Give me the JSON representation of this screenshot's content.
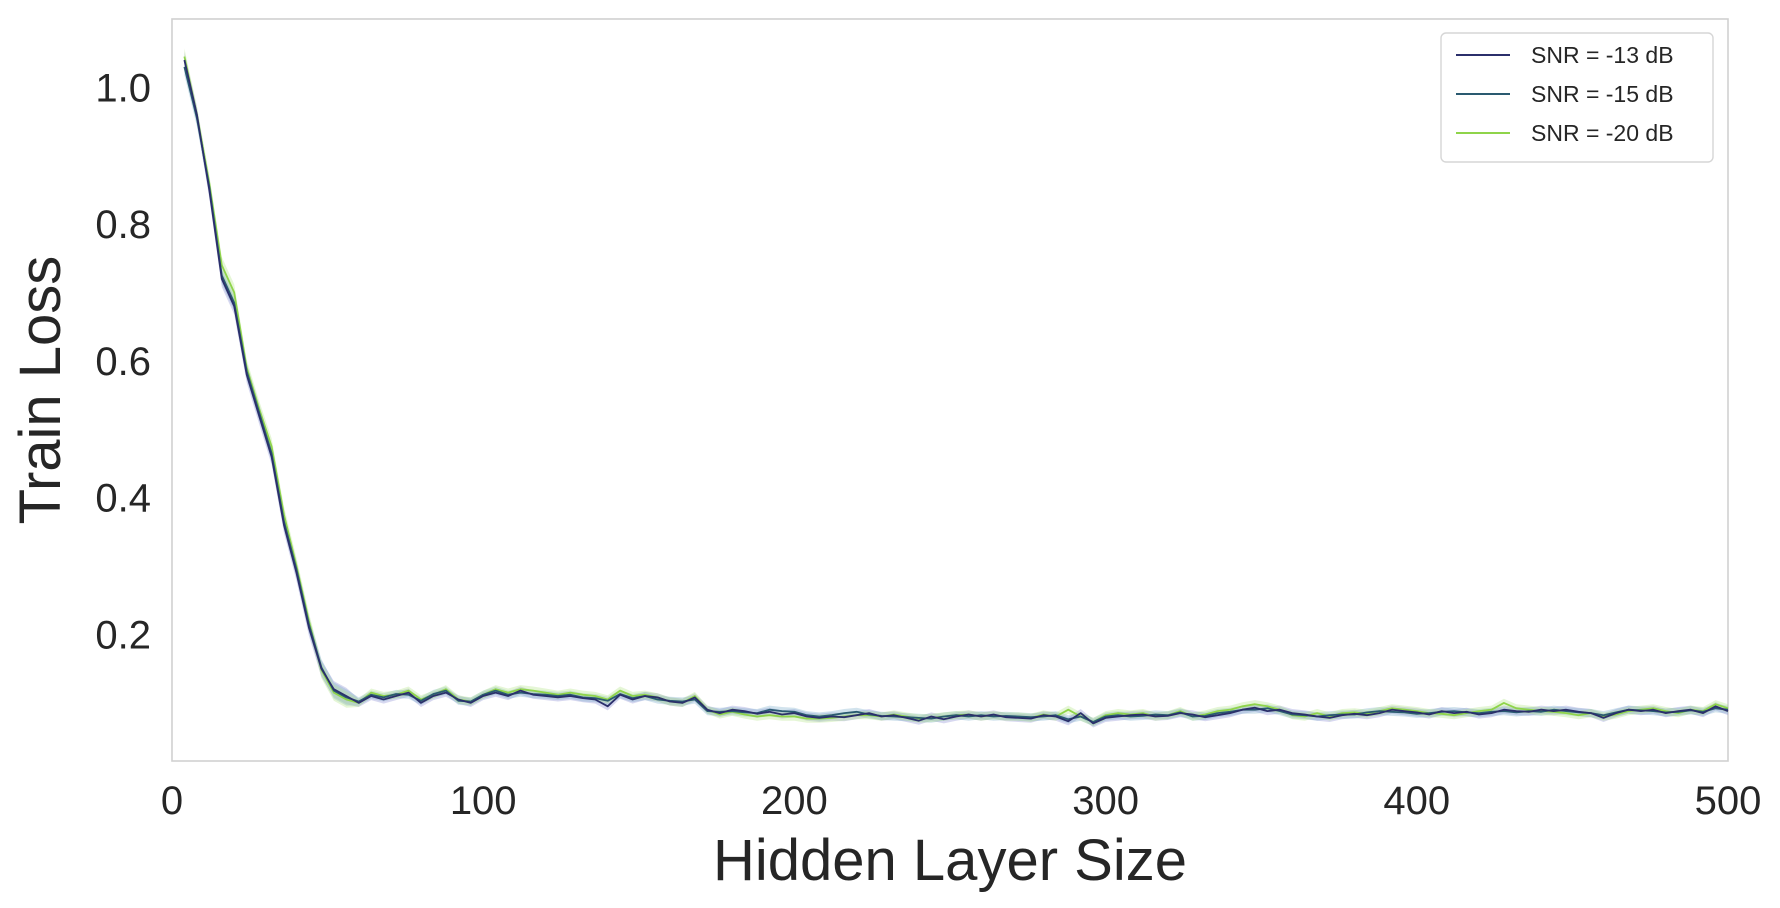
{
  "chart_data": {
    "type": "line",
    "xlabel": "Hidden Layer Size",
    "ylabel": "Train Loss",
    "xlim": [
      0,
      500
    ],
    "ylim": [
      0.015,
      1.1
    ],
    "grid": false,
    "legend_position": "top-right",
    "x_ticks": [
      {
        "value": 0,
        "label": "0"
      },
      {
        "value": 100,
        "label": "100"
      },
      {
        "value": 200,
        "label": "200"
      },
      {
        "value": 300,
        "label": "300"
      },
      {
        "value": 400,
        "label": "400"
      },
      {
        "value": 500,
        "label": "500"
      }
    ],
    "y_ticks": [
      {
        "value": 0.2,
        "label": "0.2"
      },
      {
        "value": 0.4,
        "label": "0.4"
      },
      {
        "value": 0.6,
        "label": "0.6"
      },
      {
        "value": 0.8,
        "label": "0.8"
      },
      {
        "value": 1.0,
        "label": "1.0"
      }
    ],
    "x": [
      4,
      8,
      12,
      16,
      20,
      24,
      28,
      32,
      36,
      40,
      44,
      48,
      52,
      56,
      60,
      64,
      68,
      72,
      76,
      80,
      84,
      88,
      92,
      96,
      100,
      104,
      108,
      112,
      116,
      120,
      124,
      128,
      132,
      136,
      140,
      144,
      148,
      152,
      156,
      160,
      164,
      168,
      172,
      176,
      180,
      184,
      188,
      192,
      196,
      200,
      204,
      208,
      212,
      216,
      220,
      224,
      228,
      232,
      236,
      240,
      244,
      248,
      252,
      256,
      260,
      264,
      268,
      272,
      276,
      280,
      284,
      288,
      292,
      296,
      300,
      304,
      308,
      312,
      316,
      320,
      324,
      328,
      332,
      336,
      340,
      344,
      348,
      352,
      356,
      360,
      364,
      368,
      372,
      376,
      380,
      384,
      388,
      392,
      396,
      400,
      404,
      408,
      412,
      416,
      420,
      424,
      428,
      432,
      436,
      440,
      444,
      448,
      452,
      456,
      460,
      464,
      468,
      472,
      476,
      480,
      484,
      488,
      492,
      496,
      500
    ],
    "series": [
      {
        "name": "SNR = -13 dB",
        "color": "#2b2f6b",
        "band_color": "#8c8fd4",
        "values": [
          1.04,
          0.96,
          0.85,
          0.72,
          0.68,
          0.58,
          0.52,
          0.46,
          0.36,
          0.29,
          0.21,
          0.15,
          0.12,
          0.11,
          0.1,
          0.11,
          0.105,
          0.11,
          0.115,
          0.1,
          0.11,
          0.115,
          0.105,
          0.1,
          0.11,
          0.115,
          0.11,
          0.118,
          0.112,
          0.11,
          0.108,
          0.11,
          0.107,
          0.105,
          0.095,
          0.112,
          0.105,
          0.11,
          0.108,
          0.102,
          0.1,
          0.108,
          0.09,
          0.085,
          0.09,
          0.088,
          0.084,
          0.087,
          0.083,
          0.085,
          0.08,
          0.078,
          0.08,
          0.079,
          0.082,
          0.085,
          0.08,
          0.082,
          0.078,
          0.074,
          0.08,
          0.076,
          0.08,
          0.083,
          0.08,
          0.083,
          0.079,
          0.078,
          0.077,
          0.082,
          0.08,
          0.073,
          0.085,
          0.07,
          0.078,
          0.08,
          0.082,
          0.083,
          0.08,
          0.081,
          0.085,
          0.083,
          0.079,
          0.082,
          0.085,
          0.09,
          0.093,
          0.088,
          0.09,
          0.085,
          0.083,
          0.08,
          0.078,
          0.082,
          0.084,
          0.082,
          0.085,
          0.09,
          0.088,
          0.086,
          0.083,
          0.088,
          0.085,
          0.087,
          0.083,
          0.085,
          0.09,
          0.088,
          0.087,
          0.09,
          0.088,
          0.09,
          0.087,
          0.085,
          0.078,
          0.085,
          0.09,
          0.088,
          0.09,
          0.085,
          0.088,
          0.09,
          0.085,
          0.095,
          0.088
        ]
      },
      {
        "name": "SNR = -15 dB",
        "color": "#2a5a70",
        "band_color": "#7fb0cc",
        "values": [
          1.03,
          0.955,
          0.855,
          0.725,
          0.685,
          0.585,
          0.525,
          0.465,
          0.365,
          0.295,
          0.215,
          0.152,
          0.118,
          0.108,
          0.102,
          0.112,
          0.108,
          0.113,
          0.112,
          0.103,
          0.113,
          0.118,
          0.103,
          0.102,
          0.112,
          0.118,
          0.112,
          0.115,
          0.113,
          0.112,
          0.11,
          0.112,
          0.108,
          0.107,
          0.103,
          0.113,
          0.107,
          0.11,
          0.105,
          0.103,
          0.102,
          0.105,
          0.088,
          0.087,
          0.088,
          0.086,
          0.085,
          0.09,
          0.088,
          0.087,
          0.082,
          0.08,
          0.082,
          0.085,
          0.087,
          0.083,
          0.081,
          0.08,
          0.079,
          0.078,
          0.077,
          0.08,
          0.082,
          0.08,
          0.082,
          0.08,
          0.081,
          0.08,
          0.079,
          0.08,
          0.082,
          0.076,
          0.08,
          0.072,
          0.08,
          0.082,
          0.08,
          0.081,
          0.083,
          0.082,
          0.086,
          0.08,
          0.081,
          0.085,
          0.087,
          0.09,
          0.09,
          0.092,
          0.088,
          0.083,
          0.082,
          0.08,
          0.082,
          0.083,
          0.083,
          0.086,
          0.088,
          0.087,
          0.086,
          0.084,
          0.085,
          0.087,
          0.088,
          0.086,
          0.085,
          0.087,
          0.088,
          0.086,
          0.088,
          0.087,
          0.09,
          0.088,
          0.086,
          0.085,
          0.082,
          0.086,
          0.09,
          0.089,
          0.088,
          0.086,
          0.087,
          0.089,
          0.087,
          0.092,
          0.09
        ]
      },
      {
        "name": "SNR = -20 dB",
        "color": "#8fd44a",
        "band_color": "#b4e48a",
        "values": [
          1.045,
          0.96,
          0.86,
          0.74,
          0.7,
          0.59,
          0.53,
          0.475,
          0.375,
          0.3,
          0.22,
          0.148,
          0.115,
          0.105,
          0.1,
          0.115,
          0.11,
          0.112,
          0.118,
          0.105,
          0.112,
          0.12,
          0.105,
          0.102,
          0.112,
          0.12,
          0.115,
          0.12,
          0.118,
          0.115,
          0.112,
          0.115,
          0.112,
          0.11,
          0.105,
          0.118,
          0.11,
          0.112,
          0.108,
          0.102,
          0.1,
          0.11,
          0.09,
          0.083,
          0.087,
          0.083,
          0.08,
          0.082,
          0.08,
          0.08,
          0.077,
          0.077,
          0.078,
          0.08,
          0.082,
          0.082,
          0.08,
          0.083,
          0.08,
          0.077,
          0.078,
          0.08,
          0.082,
          0.083,
          0.08,
          0.082,
          0.08,
          0.08,
          0.078,
          0.083,
          0.08,
          0.09,
          0.08,
          0.072,
          0.082,
          0.085,
          0.083,
          0.085,
          0.08,
          0.082,
          0.088,
          0.08,
          0.083,
          0.088,
          0.09,
          0.095,
          0.098,
          0.095,
          0.09,
          0.082,
          0.08,
          0.085,
          0.08,
          0.085,
          0.086,
          0.084,
          0.088,
          0.092,
          0.09,
          0.088,
          0.085,
          0.084,
          0.082,
          0.085,
          0.088,
          0.09,
          0.1,
          0.092,
          0.09,
          0.088,
          0.087,
          0.085,
          0.082,
          0.085,
          0.08,
          0.083,
          0.088,
          0.09,
          0.092,
          0.088,
          0.085,
          0.09,
          0.088,
          0.098,
          0.092
        ]
      }
    ]
  }
}
